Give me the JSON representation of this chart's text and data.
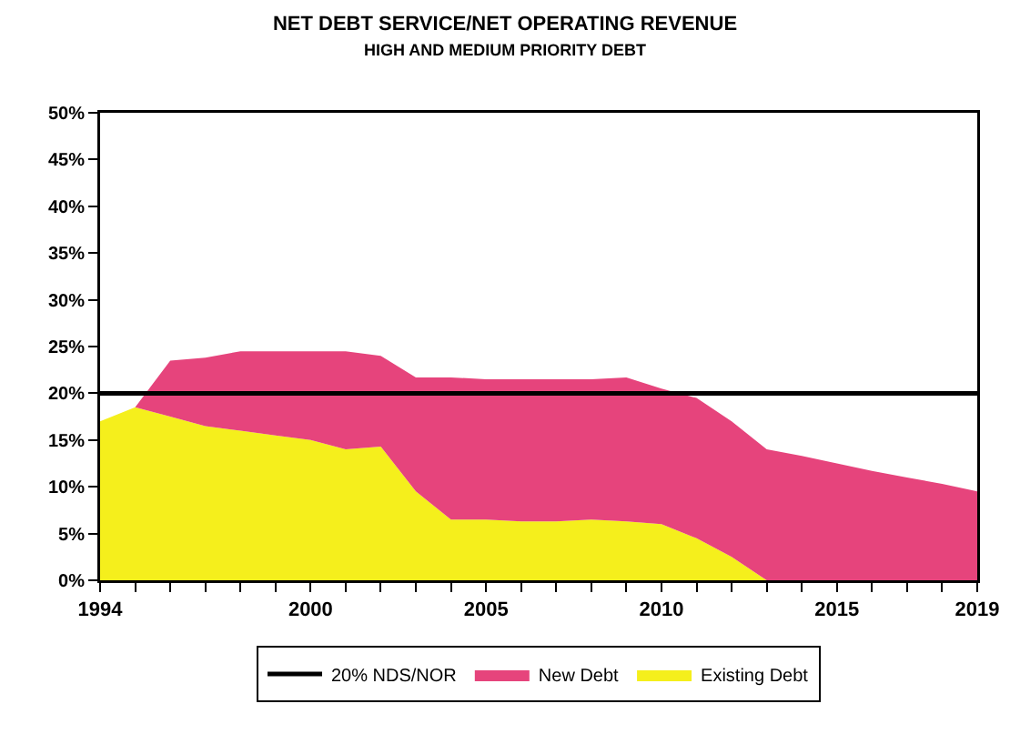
{
  "chart_data": {
    "type": "area",
    "stacked": true,
    "title": "NET DEBT SERVICE/NET OPERATING REVENUE",
    "subtitle": "HIGH AND MEDIUM PRIORITY DEBT",
    "x": [
      1994,
      1995,
      1996,
      1997,
      1998,
      1999,
      2000,
      2001,
      2002,
      2003,
      2004,
      2005,
      2006,
      2007,
      2008,
      2009,
      2010,
      2011,
      2012,
      2013,
      2014,
      2015,
      2016,
      2017,
      2018,
      2019
    ],
    "series": [
      {
        "name": "Existing Debt",
        "color": "#f5ef1c",
        "values": [
          17,
          18.5,
          17.5,
          16.5,
          16,
          15.5,
          15,
          14,
          14.3,
          9.5,
          6.5,
          6.5,
          6.3,
          6.3,
          6.5,
          6.3,
          6,
          4.5,
          2.5,
          0,
          0,
          0,
          0,
          0,
          0,
          0
        ]
      },
      {
        "name": "New Debt",
        "color": "#e6447c",
        "values": [
          0,
          0,
          6,
          7.3,
          8.5,
          9,
          9.5,
          10.5,
          9.7,
          12.2,
          15.2,
          15,
          15.2,
          15.2,
          15,
          15.4,
          14.5,
          15,
          14.5,
          14,
          13.3,
          12.5,
          11.7,
          11,
          10.3,
          9.5
        ]
      }
    ],
    "ref_lines": [
      {
        "axis": "y",
        "value": 20,
        "label": "20% NDS/NOR",
        "color": "#000000"
      }
    ],
    "xlim": [
      1994,
      2019
    ],
    "xticks": [
      1994,
      {
        "value": 1995,
        "label": null
      },
      {
        "value": 1996,
        "label": null
      },
      {
        "value": 1997,
        "label": null
      },
      {
        "value": 1998,
        "label": null
      },
      {
        "value": 1999,
        "label": null
      },
      2000,
      {
        "value": 2001,
        "label": null
      },
      {
        "value": 2002,
        "label": null
      },
      {
        "value": 2003,
        "label": null
      },
      {
        "value": 2004,
        "label": null
      },
      2005,
      {
        "value": 2006,
        "label": null
      },
      {
        "value": 2007,
        "label": null
      },
      {
        "value": 2008,
        "label": null
      },
      {
        "value": 2009,
        "label": null
      },
      2010,
      {
        "value": 2011,
        "label": null
      },
      {
        "value": 2012,
        "label": null
      },
      {
        "value": 2013,
        "label": null
      },
      {
        "value": 2014,
        "label": null
      },
      2015,
      {
        "value": 2016,
        "label": null
      },
      {
        "value": 2017,
        "label": null
      },
      {
        "value": 2018,
        "label": null
      },
      2019
    ],
    "ylim": [
      0,
      50
    ],
    "yticks": [
      {
        "value": 0,
        "label": "0%"
      },
      {
        "value": 5,
        "label": "5%"
      },
      {
        "value": 10,
        "label": "10%"
      },
      {
        "value": 15,
        "label": "15%"
      },
      {
        "value": 20,
        "label": "20%"
      },
      {
        "value": 25,
        "label": "25%"
      },
      {
        "value": 30,
        "label": "30%"
      },
      {
        "value": 35,
        "label": "35%"
      },
      {
        "value": 40,
        "label": "40%"
      },
      {
        "value": 45,
        "label": "45%"
      },
      {
        "value": 50,
        "label": "50%"
      }
    ],
    "grid": false,
    "legend": "bottom"
  }
}
